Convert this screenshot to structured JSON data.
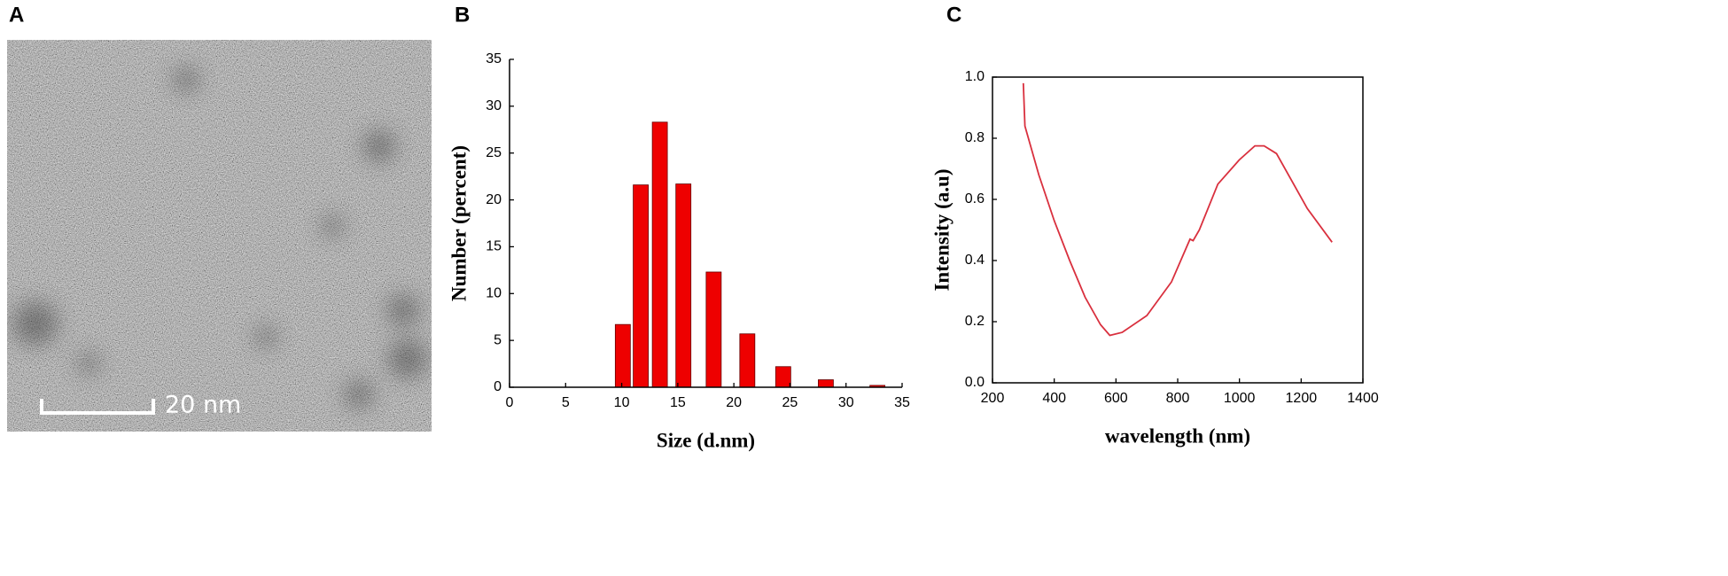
{
  "chart_data": [
    {
      "type": "image",
      "label": "A",
      "scale_bar": "20 nm"
    },
    {
      "type": "bar",
      "label": "B",
      "xlabel": "Size (d.nm)",
      "ylabel": "Number (percent)",
      "x": [
        10.1,
        11.7,
        13.4,
        15.5,
        18.2,
        21.2,
        24.4,
        28.2,
        32.8
      ],
      "values": [
        6.7,
        21.6,
        28.3,
        21.7,
        12.3,
        5.7,
        2.2,
        0.8,
        0.2
      ],
      "color": "#ee0000",
      "xlim": [
        0,
        35
      ],
      "xticks": [
        0,
        5,
        10,
        15,
        20,
        25,
        30,
        35
      ],
      "ylim": [
        0,
        35
      ],
      "yticks": [
        0,
        5,
        10,
        15,
        20,
        25,
        30,
        35
      ]
    },
    {
      "type": "line",
      "label": "C",
      "xlabel": "wavelength (nm)",
      "ylabel": "Intensity (a.u)",
      "x": [
        300,
        305,
        350,
        400,
        450,
        500,
        550,
        580,
        620,
        700,
        780,
        840,
        850,
        870,
        930,
        1000,
        1050,
        1080,
        1120,
        1170,
        1220,
        1300
      ],
      "values": [
        0.98,
        0.84,
        0.68,
        0.53,
        0.4,
        0.28,
        0.19,
        0.155,
        0.165,
        0.22,
        0.33,
        0.47,
        0.465,
        0.5,
        0.65,
        0.73,
        0.775,
        0.775,
        0.75,
        0.66,
        0.57,
        0.46
      ],
      "color": "#d9303e",
      "xlim": [
        200,
        1400
      ],
      "xticks": [
        200,
        400,
        600,
        800,
        1000,
        1200,
        1400
      ],
      "ylim": [
        0,
        1
      ],
      "yticks": [
        {
          "value": 0,
          "label": "0.0"
        },
        0.2,
        0.4,
        0.6,
        0.8,
        {
          "value": 1,
          "label": "1.0"
        }
      ]
    }
  ]
}
